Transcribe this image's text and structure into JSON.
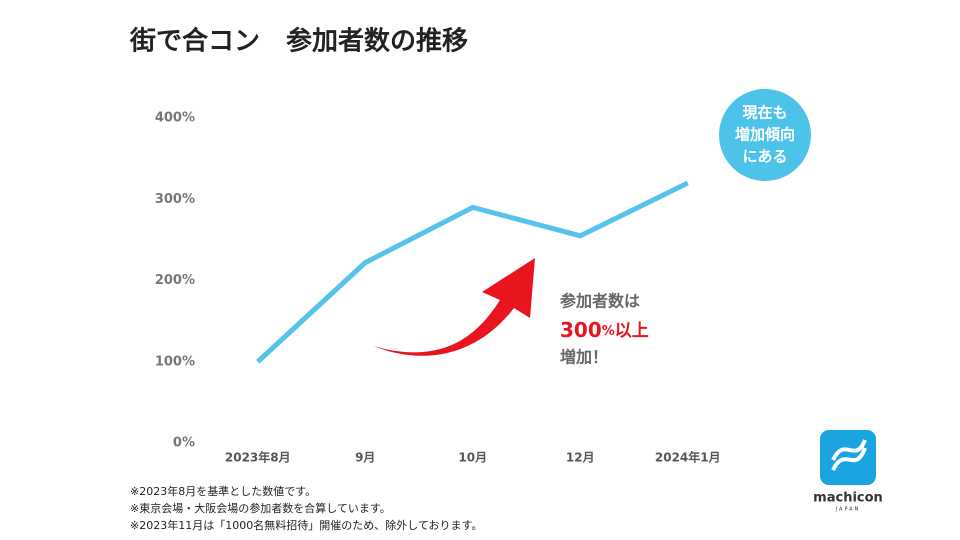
{
  "chart_data": {
    "type": "line",
    "title": "街で合コン　参加者数の推移",
    "categories": [
      "2023年8月",
      "9月",
      "10月",
      "12月",
      "2024年1月"
    ],
    "series": [
      {
        "name": "参加者数",
        "color": "#55c3ec",
        "values": [
          100,
          222,
          290,
          255,
          320
        ]
      }
    ],
    "ylim": [
      0,
      400
    ],
    "yticks": [
      {
        "value": 0,
        "label": "0%"
      },
      {
        "value": 100,
        "label": "100%"
      },
      {
        "value": 200,
        "label": "200%"
      },
      {
        "value": 300,
        "label": "300%"
      },
      {
        "value": 400,
        "label": "400%"
      }
    ],
    "grid": false,
    "bubble": {
      "lines": [
        "現在も",
        "増加傾向",
        "にある"
      ],
      "color": "#4dc3ea"
    },
    "callout": {
      "lead": "参加者数は",
      "number": "300",
      "unit": "%",
      "suffix": "以上",
      "tail": "増加！",
      "color": "#e8141e"
    },
    "notes": [
      "※2023年8月を基準とした数値です。",
      "※東京会場・大阪会場の参加者数を合算しています。",
      "※2023年11月は「1000名無料招待」開催のため、除外しております。"
    ],
    "logo": {
      "name": "machicon",
      "sub": "JAPAN"
    }
  }
}
